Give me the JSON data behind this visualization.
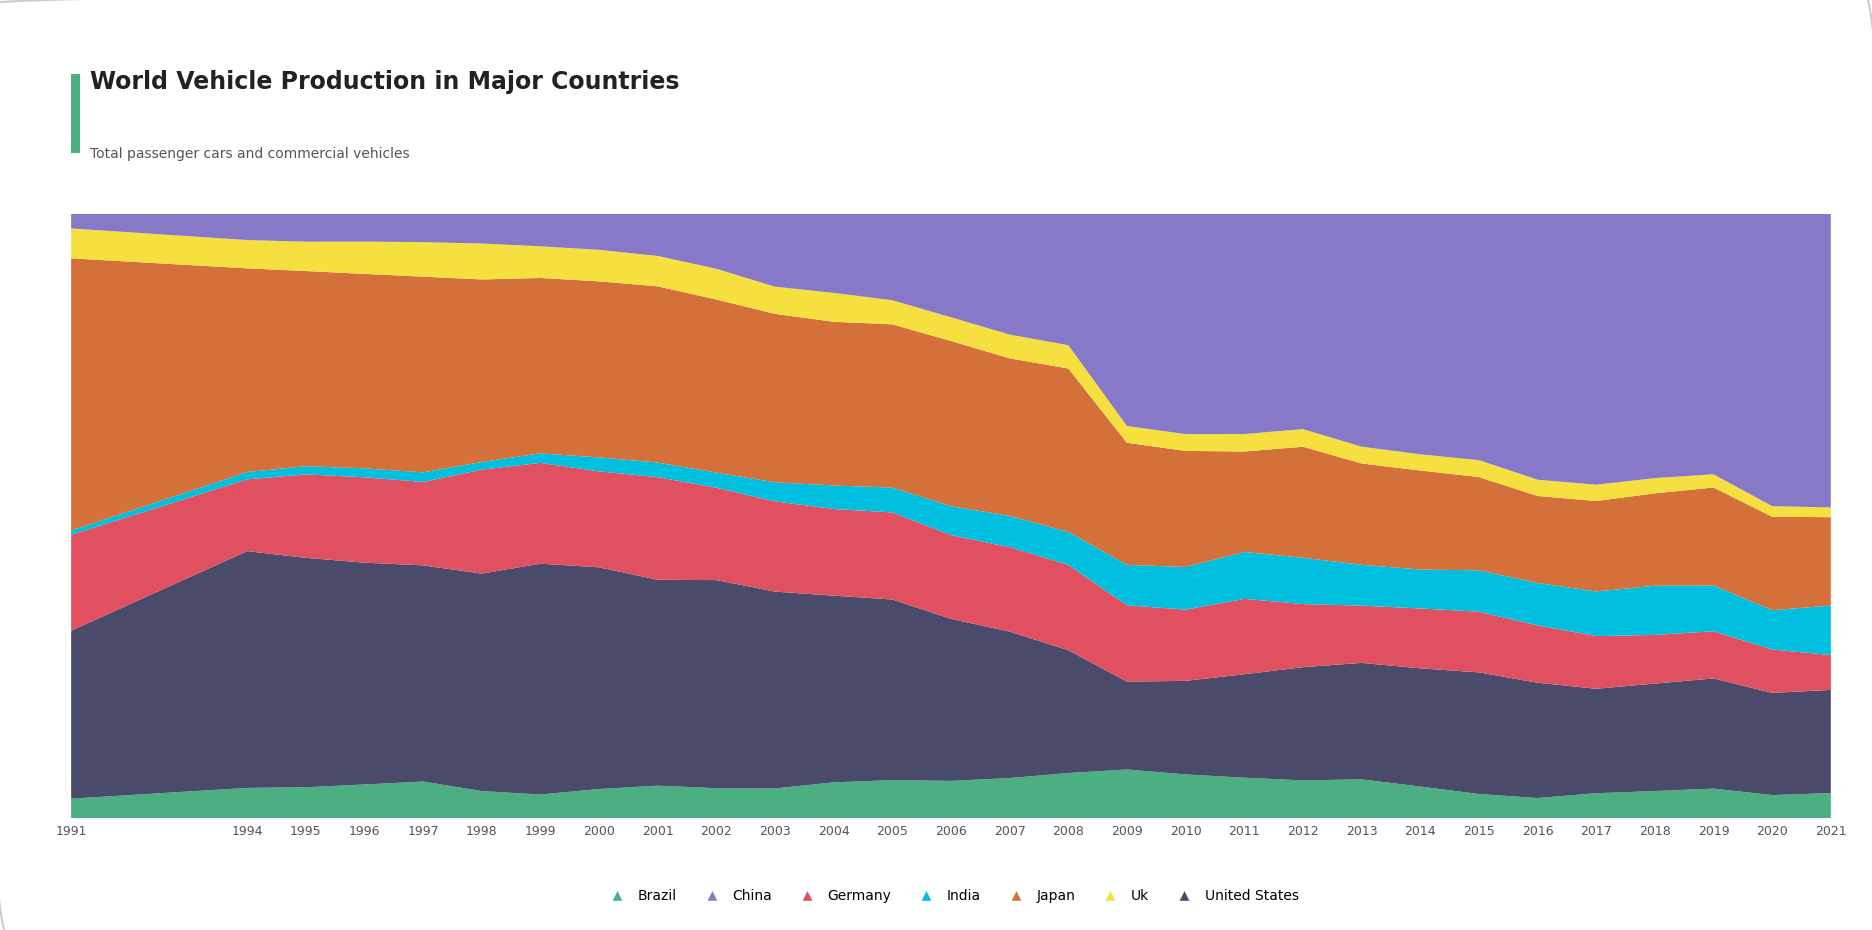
{
  "title": "World Vehicle Production in Major Countries",
  "subtitle": "Total passenger cars and commercial vehicles",
  "title_color": "#222222",
  "subtitle_color": "#555555",
  "title_bar_color": "#4CAF82",
  "background_color": "#ffffff",
  "chart_bg_color": "#ffffff",
  "years": [
    1991,
    1994,
    1995,
    1996,
    1997,
    1998,
    1999,
    2000,
    2001,
    2002,
    2003,
    2004,
    2005,
    2006,
    2007,
    2008,
    2009,
    2010,
    2011,
    2012,
    2013,
    2014,
    2015,
    2016,
    2017,
    2018,
    2019,
    2020,
    2021
  ],
  "series": {
    "Brazil": [
      960,
      1581,
      1629,
      1804,
      2069,
      1506,
      1350,
      1691,
      1817,
      1791,
      1828,
      2317,
      2528,
      2611,
      2970,
      3215,
      3182,
      3648,
      3406,
      3402,
      3712,
      3146,
      2429,
      2156,
      2699,
      2880,
      2945,
      2014,
      2248
    ],
    "United States": [
      8175,
      12264,
      11985,
      11799,
      12118,
      11974,
      13024,
      12771,
      11424,
      12326,
      12015,
      11989,
      11947,
      11263,
      10781,
      8693,
      5709,
      7761,
      8653,
      10141,
      11066,
      11661,
      12100,
      12198,
      11190,
      11314,
      10880,
      8822,
      9167
    ],
    "Germany": [
      4660,
      3720,
      4360,
      4541,
      4678,
      5727,
      5687,
      5527,
      5692,
      5469,
      5507,
      5570,
      5757,
      5820,
      6213,
      6041,
      4964,
      5906,
      6311,
      5649,
      5439,
      5908,
      6033,
      6063,
      5645,
      5120,
      4661,
      3742,
      3096
    ],
    "India": [
      215,
      378,
      429,
      474,
      537,
      422,
      541,
      801,
      812,
      895,
      1161,
      1511,
      1641,
      2019,
      2306,
      2332,
      2633,
      3537,
      3927,
      4145,
      3880,
      3840,
      4121,
      4488,
      4782,
      5174,
      4516,
      3394,
      4401
    ],
    "Japan": [
      13245,
      10553,
      10196,
      10346,
      10975,
      10050,
      9895,
      10145,
      9777,
      10257,
      10286,
      10511,
      10799,
      11484,
      11596,
      11575,
      7934,
      9629,
      8398,
      9943,
      9630,
      9775,
      9278,
      9204,
      9693,
      9729,
      9684,
      8068,
      7847
    ],
    "Uk": [
      1454,
      1467,
      1532,
      1717,
      1935,
      1980,
      1786,
      1814,
      1685,
      1821,
      1657,
      1856,
      1596,
      1649,
      1750,
      1649,
      1090,
      1393,
      1464,
      1576,
      1597,
      1598,
      1682,
      1722,
      1749,
      1604,
      1303,
      920,
      859
    ],
    "China": [
      708,
      1353,
      1453,
      1474,
      1583,
      1630,
      1829,
      2069,
      2334,
      3251,
      4443,
      5074,
      5708,
      7189,
      8882,
      9299,
      13791,
      18265,
      18418,
      19271,
      22117,
      23722,
      24503,
      28119,
      29015,
      27809,
      25721,
      25225,
      26082
    ]
  },
  "colors": {
    "Brazil": "#4CAF82",
    "United States": "#4A4A6A",
    "Germany": "#E05060",
    "India": "#00BFDF",
    "Japan": "#D4703A",
    "Uk": "#F5E040",
    "China": "#8878C8"
  },
  "stack_order": [
    "Brazil",
    "United States",
    "Germany",
    "India",
    "Japan",
    "Uk",
    "China"
  ],
  "legend_order": [
    "Brazil",
    "China",
    "Germany",
    "India",
    "Japan",
    "Uk",
    "United States"
  ],
  "x_tick_labels": [
    "1991",
    "1994",
    "1995",
    "1996",
    "1997",
    "1998",
    "1999",
    "2000",
    "2001",
    "2002",
    "2003",
    "2004",
    "2005",
    "2006",
    "2007",
    "2008",
    "2009",
    "2010",
    "2011",
    "2012",
    "2013",
    "2014",
    "2015",
    "2016",
    "2017",
    "2018",
    "2019",
    "2020",
    "2021"
  ]
}
